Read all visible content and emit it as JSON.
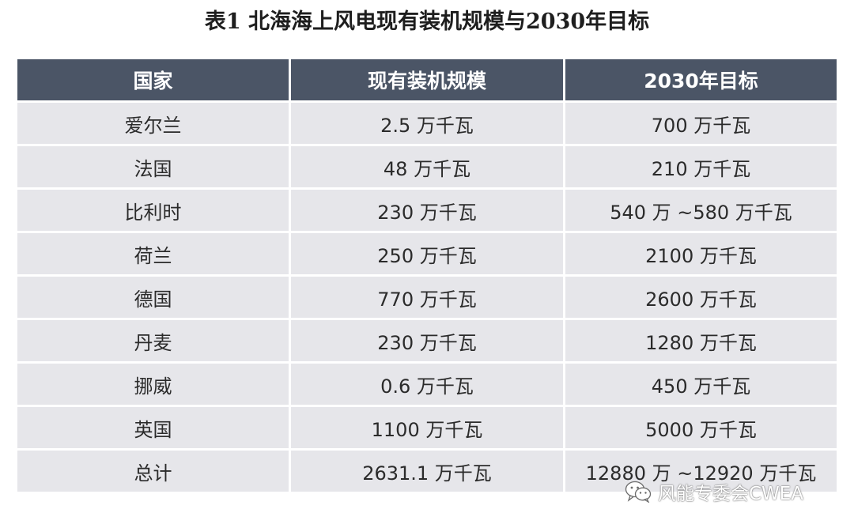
{
  "title": "表1 北海海上风电现有装机规模与2030年目标",
  "table": {
    "headers": [
      "国家",
      "现有装机规模",
      "2030年目标"
    ],
    "rows": [
      [
        "爱尔兰",
        "2.5 万千瓦",
        "700 万千瓦"
      ],
      [
        "法国",
        "48 万千瓦",
        "210 万千瓦"
      ],
      [
        "比利时",
        "230 万千瓦",
        "540 万 ~580 万千瓦"
      ],
      [
        "荷兰",
        "250 万千瓦",
        "2100 万千瓦"
      ],
      [
        "德国",
        "770 万千瓦",
        "2600 万千瓦"
      ],
      [
        "丹麦",
        "230 万千瓦",
        "1280 万千瓦"
      ],
      [
        "挪威",
        "0.6 万千瓦",
        "450 万千瓦"
      ],
      [
        "英国",
        "1100 万千瓦",
        "5000 万千瓦"
      ],
      [
        "总计",
        "2631.1 万千瓦",
        "12880 万 ~12920 万千瓦"
      ]
    ]
  },
  "watermark": {
    "icon": "wechat-icon",
    "text": "风能专委会CWEA"
  },
  "colors": {
    "header_bg": "#4b5566",
    "row_bg": "#e6e6ea"
  }
}
